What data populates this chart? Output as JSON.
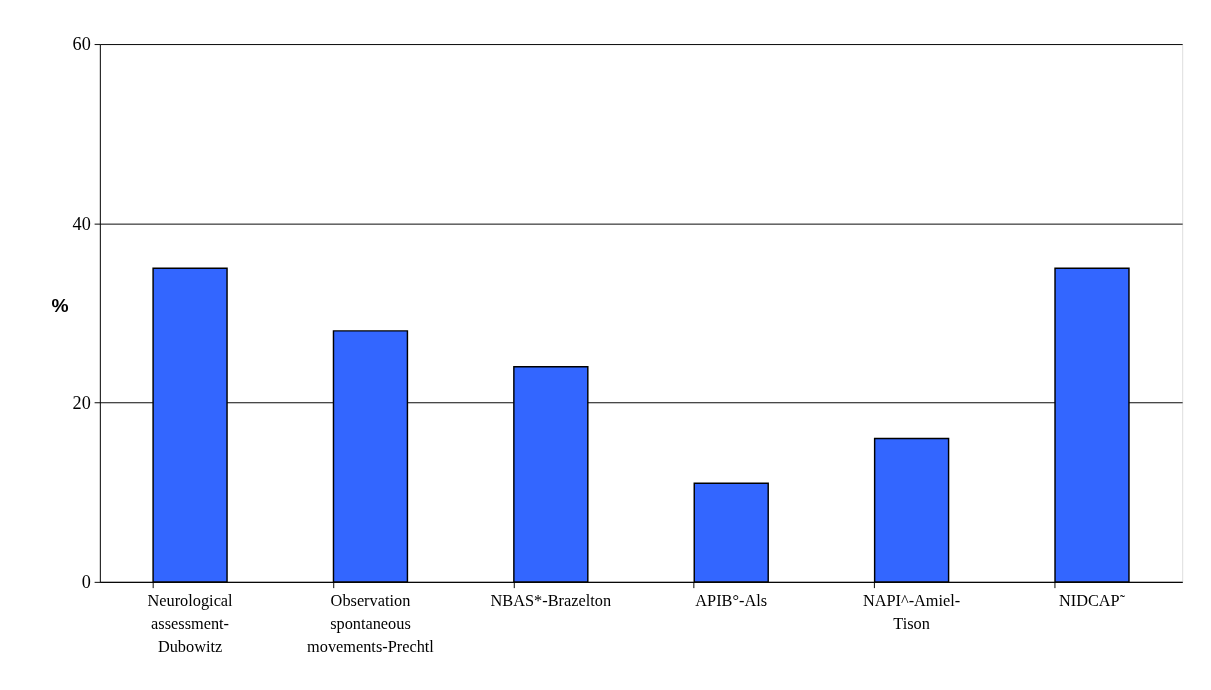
{
  "chart_data": {
    "type": "bar",
    "categories": [
      "Neurological assessment-Dubowitz",
      "Observation spontaneous movements-Prechtl",
      "NBAS*-Brazelton",
      "APIB°-Als",
      "NAPI^-Amiel-Tison",
      "NIDCAP˜"
    ],
    "values": [
      35,
      28,
      24,
      11,
      16,
      35
    ],
    "color": "#3366ff",
    "ylabel": "%",
    "ylim": [
      0,
      60
    ],
    "yticks": [
      0,
      20,
      40,
      60
    ],
    "grid": "y"
  }
}
